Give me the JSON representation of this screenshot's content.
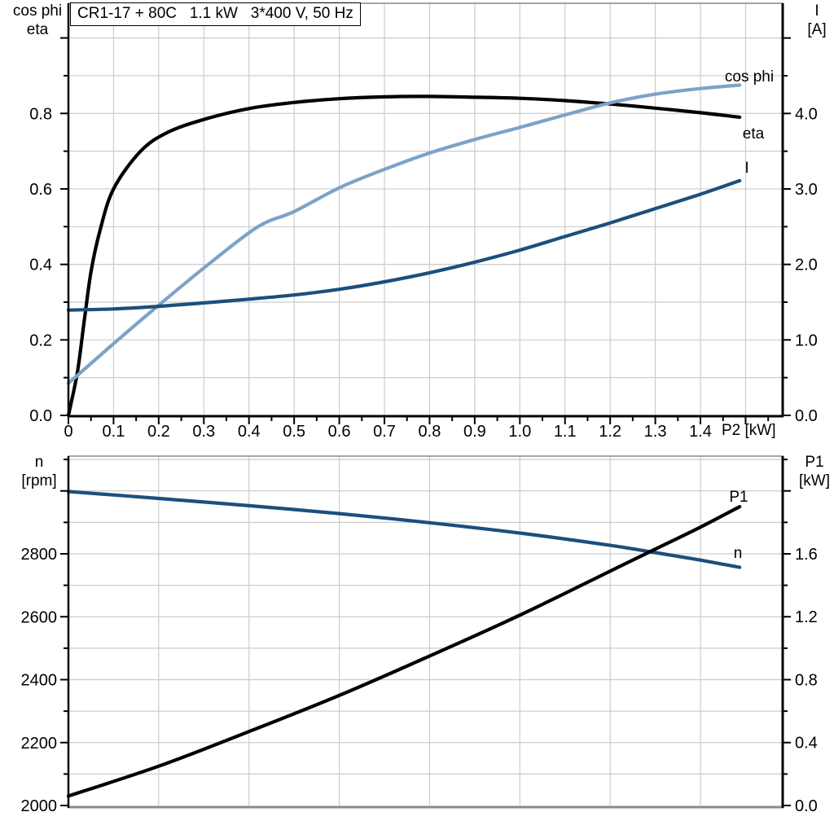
{
  "title_box": "CR1-17 + 80C   1.1 kW   3*400 V, 50 Hz",
  "colors": {
    "black": "#000000",
    "light_blue": "#7BA3C8",
    "dark_blue": "#1C4F7C",
    "grid": "#cccccc",
    "border_gray": "#8a8a8a"
  },
  "top_chart": {
    "left_axis_title": [
      "cos phi",
      "eta"
    ],
    "right_axis_title": [
      "I",
      "[A]"
    ],
    "x_axis_title": "P2 [kW]"
  },
  "bottom_chart": {
    "left_axis_title": [
      "n",
      "[rpm]"
    ],
    "right_axis_title": [
      "P1",
      "[kW]"
    ]
  },
  "chart_data": [
    {
      "id": "top",
      "type": "line",
      "title": "CR1-17 + 80C  1.1 kW  3*400 V, 50 Hz",
      "xlabel": "P2 [kW]",
      "ylabel_left": "cos phi / eta",
      "ylabel_right": "I [A]",
      "xlim": [
        0,
        1.585
      ],
      "ylim_left": [
        0,
        1.09
      ],
      "ylim_right": [
        0,
        5.45
      ],
      "grid": true,
      "x_tick_labels": [
        "0",
        "0.1",
        "0.2",
        "0.3",
        "0.4",
        "0.5",
        "0.6",
        "0.7",
        "0.8",
        "0.9",
        "1.0",
        "1.1",
        "1.2",
        "1.3",
        "1.4"
      ],
      "left_tick_labels": [
        "0.0",
        "0.2",
        "0.4",
        "0.6",
        "0.8"
      ],
      "right_tick_labels": [
        "0.0",
        "1.0",
        "2.0",
        "3.0",
        "4.0"
      ],
      "series": [
        {
          "name": "eta",
          "axis": "left",
          "color": "#000000",
          "x": [
            0,
            0.02,
            0.035,
            0.05,
            0.07,
            0.1,
            0.16,
            0.22,
            0.3,
            0.4,
            0.5,
            0.6,
            0.7,
            0.8,
            0.9,
            1.0,
            1.1,
            1.2,
            1.3,
            1.4,
            1.487
          ],
          "y": [
            0,
            0.115,
            0.25,
            0.38,
            0.49,
            0.6,
            0.7,
            0.75,
            0.784,
            0.813,
            0.829,
            0.839,
            0.844,
            0.845,
            0.843,
            0.84,
            0.834,
            0.825,
            0.814,
            0.802,
            0.79
          ]
        },
        {
          "name": "cos phi",
          "axis": "left",
          "color": "#7BA3C8",
          "x": [
            0,
            0.1,
            0.2,
            0.31,
            0.42,
            0.5,
            0.6,
            0.7,
            0.8,
            0.9,
            1.0,
            1.1,
            1.2,
            1.3,
            1.4,
            1.487
          ],
          "y": [
            0.085,
            0.19,
            0.292,
            0.4,
            0.5,
            0.54,
            0.603,
            0.652,
            0.695,
            0.731,
            0.763,
            0.796,
            0.828,
            0.851,
            0.866,
            0.875
          ]
        },
        {
          "name": "I",
          "axis": "right",
          "color": "#1C4F7C",
          "x": [
            0,
            0.1,
            0.2,
            0.3,
            0.4,
            0.5,
            0.6,
            0.7,
            0.8,
            0.9,
            1.0,
            1.1,
            1.2,
            1.3,
            1.4,
            1.487
          ],
          "y": [
            1.395,
            1.41,
            1.445,
            1.49,
            1.54,
            1.595,
            1.67,
            1.77,
            1.89,
            2.03,
            2.19,
            2.37,
            2.55,
            2.74,
            2.93,
            3.11
          ]
        }
      ]
    },
    {
      "id": "bottom",
      "type": "line",
      "xlabel": "P2 [kW]",
      "ylabel_left": "n [rpm]",
      "ylabel_right": "P1 [kW]",
      "xlim": [
        0,
        1.585
      ],
      "ylim_left": [
        1994,
        3110
      ],
      "ylim_right": [
        0,
        2.23
      ],
      "grid": true,
      "left_tick_labels": [
        "2000",
        "2200",
        "2400",
        "2600",
        "2800"
      ],
      "right_tick_labels": [
        "0.0",
        "0.4",
        "0.8",
        "1.2",
        "1.6"
      ],
      "series": [
        {
          "name": "n",
          "axis": "left",
          "color": "#1C4F7C",
          "x": [
            0,
            0.2,
            0.4,
            0.6,
            0.8,
            1.0,
            1.2,
            1.3,
            1.4,
            1.487
          ],
          "y": [
            2998,
            2976,
            2953,
            2928,
            2899,
            2866,
            2827,
            2804,
            2780,
            2757
          ]
        },
        {
          "name": "P1",
          "axis": "right",
          "color": "#000000",
          "x": [
            0,
            0.2,
            0.4,
            0.6,
            0.8,
            1.0,
            1.2,
            1.3,
            1.4,
            1.487
          ],
          "y": [
            0.06,
            0.25,
            0.47,
            0.7,
            0.95,
            1.21,
            1.49,
            1.63,
            1.77,
            1.9
          ]
        }
      ]
    }
  ]
}
